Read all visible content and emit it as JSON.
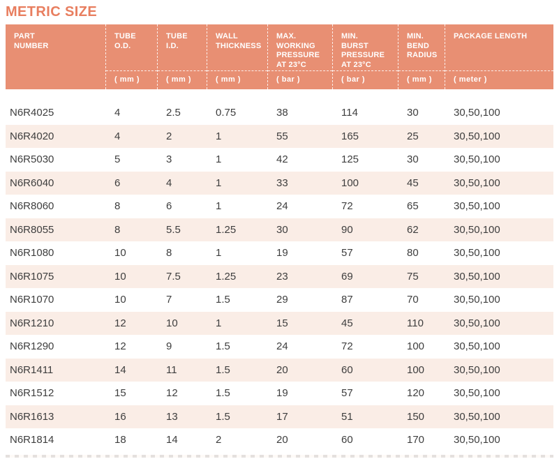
{
  "page": {
    "title": "METRIC SIZE"
  },
  "colors": {
    "accent_title": "#E87E5F",
    "header_background": "#E88F73",
    "header_text": "#FFFFFF",
    "row_stripe": "#FAEDE6",
    "body_text": "#3E3E3E"
  },
  "table": {
    "columns": [
      {
        "key": "part-number",
        "lines": [
          "PART",
          "NUMBER"
        ],
        "unit": ""
      },
      {
        "key": "tube-od",
        "lines": [
          "TUBE",
          "O.D."
        ],
        "unit": "( mm )"
      },
      {
        "key": "tube-id",
        "lines": [
          "TUBE",
          "I.D."
        ],
        "unit": "( mm )"
      },
      {
        "key": "wall-thickness",
        "lines": [
          "WALL",
          "THICKNESS"
        ],
        "unit": "( mm )"
      },
      {
        "key": "max-working-pressure",
        "lines": [
          "MAX.",
          "WORKING",
          "PRESSURE",
          "AT 23°C"
        ],
        "unit": "( bar )"
      },
      {
        "key": "min-burst-pressure",
        "lines": [
          "MIN.",
          "BURST",
          "PRESSURE",
          "AT 23°C"
        ],
        "unit": "( bar )"
      },
      {
        "key": "min-bend-radius",
        "lines": [
          "MIN.",
          "BEND",
          "RADIUS"
        ],
        "unit": "( mm )"
      },
      {
        "key": "package-length",
        "lines": [
          "PACKAGE LENGTH"
        ],
        "unit": "( meter )"
      }
    ],
    "rows": [
      [
        "N6R4025",
        "4",
        "2.5",
        "0.75",
        "38",
        "114",
        "30",
        "30,50,100"
      ],
      [
        "N6R4020",
        "4",
        "2",
        "1",
        "55",
        "165",
        "25",
        "30,50,100"
      ],
      [
        "N6R5030",
        "5",
        "3",
        "1",
        "42",
        "125",
        "30",
        "30,50,100"
      ],
      [
        "N6R6040",
        "6",
        "4",
        "1",
        "33",
        "100",
        "45",
        "30,50,100"
      ],
      [
        "N6R8060",
        "8",
        "6",
        "1",
        "24",
        "72",
        "65",
        "30,50,100"
      ],
      [
        "N6R8055",
        "8",
        "5.5",
        "1.25",
        "30",
        "90",
        "62",
        "30,50,100"
      ],
      [
        "N6R1080",
        "10",
        "8",
        "1",
        "19",
        "57",
        "80",
        "30,50,100"
      ],
      [
        "N6R1075",
        "10",
        "7.5",
        "1.25",
        "23",
        "69",
        "75",
        "30,50,100"
      ],
      [
        "N6R1070",
        "10",
        "7",
        "1.5",
        "29",
        "87",
        "70",
        "30,50,100"
      ],
      [
        "N6R1210",
        "12",
        "10",
        "1",
        "15",
        "45",
        "110",
        "30,50,100"
      ],
      [
        "N6R1290",
        "12",
        "9",
        "1.5",
        "24",
        "72",
        "100",
        "30,50,100"
      ],
      [
        "N6R1411",
        "14",
        "11",
        "1.5",
        "20",
        "60",
        "100",
        "30,50,100"
      ],
      [
        "N6R1512",
        "15",
        "12",
        "1.5",
        "19",
        "57",
        "120",
        "30,50,100"
      ],
      [
        "N6R1613",
        "16",
        "13",
        "1.5",
        "17",
        "51",
        "150",
        "30,50,100"
      ],
      [
        "N6R1814",
        "18",
        "14",
        "2",
        "20",
        "60",
        "170",
        "30,50,100"
      ]
    ]
  }
}
